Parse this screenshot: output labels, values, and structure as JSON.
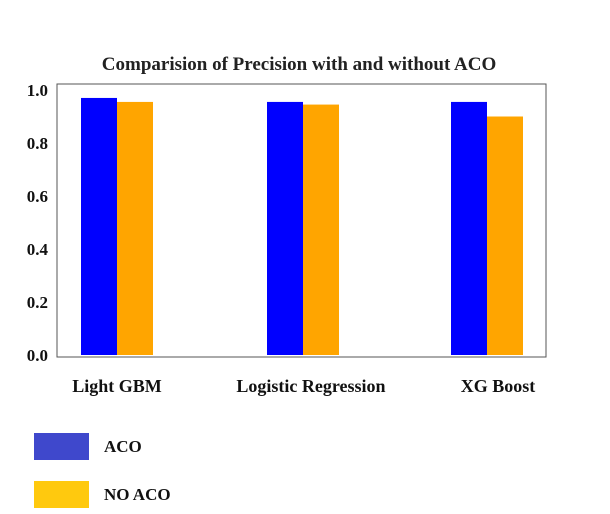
{
  "chart_data": {
    "type": "bar",
    "title": "Comparision of Precision with and without ACO",
    "xlabel": "",
    "ylabel": "",
    "categories": [
      "Light GBM",
      "Logistic Regression",
      "XG Boost"
    ],
    "series": [
      {
        "name": "ACO",
        "values": [
          0.97,
          0.955,
          0.955
        ],
        "color": "#0000ff"
      },
      {
        "name": "NO ACO",
        "values": [
          0.955,
          0.945,
          0.9
        ],
        "color": "#ffa500"
      }
    ],
    "ylim": [
      0,
      1.0
    ],
    "yticks": [
      "0.0",
      "0.2",
      "0.4",
      "0.6",
      "0.8",
      "1.0"
    ],
    "grid": false,
    "legend": {
      "placement": "bottom-left",
      "items": [
        {
          "label": "ACO",
          "color": "#3f48cc"
        },
        {
          "label": "NO ACO",
          "color": "#ffc90e"
        }
      ]
    }
  }
}
